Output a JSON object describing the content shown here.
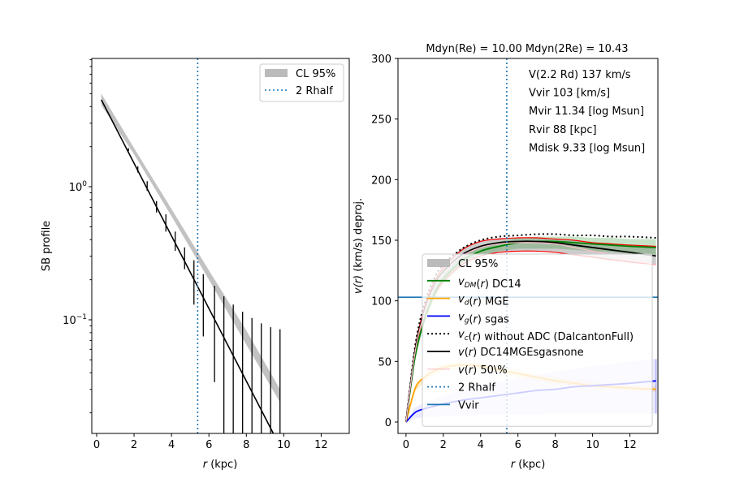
{
  "chart_data": [
    {
      "type": "line",
      "panel": "left",
      "title": "",
      "xlabel_italic": "r",
      "xlabel_rest": " (kpc)",
      "ylabel": "SB profile",
      "xscale": "linear",
      "yscale": "log",
      "xlim": [
        -0.26,
        13.5
      ],
      "ylim": [
        0.014,
        9.2
      ],
      "x_ticks": [
        0,
        2,
        4,
        6,
        8,
        10,
        12
      ],
      "x_tick_labels": [
        "0",
        "2",
        "4",
        "6",
        "8",
        "10",
        "12"
      ],
      "y_ticks": [
        1,
        0.1
      ],
      "y_tick_labels": [
        {
          "base": "10",
          "exp": "0"
        },
        {
          "base": "10",
          "exp": "−1"
        }
      ],
      "model_line": {
        "name": "SB model",
        "color": "#000000",
        "x": [
          0.25,
          9.5
        ],
        "y": [
          4.5,
          0.0135
        ]
      },
      "cl_band": {
        "name": "CL 95%",
        "color": "#bbbbbb",
        "x": [
          0.25,
          2,
          4,
          6,
          8,
          9.8
        ],
        "lower": [
          4.1,
          1.75,
          0.6,
          0.2,
          0.065,
          0.024
        ],
        "upper": [
          5.0,
          1.95,
          0.68,
          0.235,
          0.083,
          0.03
        ]
      },
      "error_bars": {
        "name": "SB data",
        "color": "#000000",
        "x": [
          1.7,
          2.2,
          2.7,
          3.2,
          3.7,
          4.2,
          4.7,
          5.2,
          5.7,
          6.3,
          6.8,
          7.3,
          7.8,
          8.3,
          8.8,
          9.3,
          9.8
        ],
        "low": [
          1.85,
          1.28,
          0.93,
          0.64,
          0.46,
          0.33,
          0.24,
          0.13,
          0.075,
          0.034,
          0.01,
          0.01,
          0.01,
          0.01,
          0.01,
          0.01,
          0.01
        ],
        "high": [
          1.95,
          1.42,
          1.1,
          0.78,
          0.62,
          0.46,
          0.35,
          0.28,
          0.22,
          0.18,
          0.15,
          0.13,
          0.115,
          0.103,
          0.094,
          0.088,
          0.085
        ]
      },
      "rhalf2_line": {
        "name": "2 Rhalf",
        "x": 5.4,
        "color": "#1f77b4"
      },
      "legend": {
        "position": "upper right",
        "entries": [
          {
            "label": "CL 95%",
            "style": "patch",
            "color": "#bbbbbb"
          },
          {
            "label": "2 Rhalf",
            "style": "dotted",
            "color": "#1f77b4"
          }
        ]
      }
    },
    {
      "type": "line",
      "panel": "right",
      "title": "Mdyn(Re) = 10.00  Mdyn(2Re) = 10.43",
      "xlabel_italic": "r",
      "xlabel_rest": " (kpc)",
      "ylabel": "v(r) (km/s) deproj.",
      "ylabel_italic": "v(r)",
      "ylabel_rest": " (km/s) deproj.",
      "xlim": [
        -0.43,
        13.5
      ],
      "ylim": [
        -9.4,
        300
      ],
      "x_ticks": [
        0,
        2,
        4,
        6,
        8,
        10,
        12
      ],
      "x_tick_labels": [
        "0",
        "2",
        "4",
        "6",
        "8",
        "10",
        "12"
      ],
      "y_ticks": [
        0,
        50,
        100,
        150,
        200,
        250,
        300
      ],
      "y_tick_labels": [
        "0",
        "50",
        "100",
        "150",
        "200",
        "250",
        "300"
      ],
      "annotations": [
        "V(2.2 Rd) 137 km/s",
        "Vvir 103 [km/s]",
        "Mvir 11.34 [log Msun]",
        "Rvir 88 [kpc]",
        "Mdisk 9.33 [log Msun]"
      ],
      "x": [
        0,
        0.5,
        1,
        1.5,
        2,
        3,
        4,
        5,
        6,
        7,
        8,
        9,
        10,
        11,
        12,
        13.4
      ],
      "series": [
        {
          "name": "v_DM(r) DC14",
          "color": "#008000",
          "style": "solid",
          "values": [
            0,
            55,
            85,
            105,
            118,
            133,
            141,
            145,
            148,
            149,
            149,
            148,
            147,
            146,
            145,
            144
          ]
        },
        {
          "name": "v_d(r) MGE",
          "color": "#ffa500",
          "style": "solid",
          "values": [
            0,
            28,
            37,
            42,
            45,
            47,
            46,
            43,
            40,
            37,
            34,
            32,
            30,
            29,
            28,
            27
          ]
        },
        {
          "name": "v_g(r) sgas",
          "color": "#0000ff",
          "style": "solid",
          "values": [
            0,
            8,
            11,
            13,
            15,
            18,
            20,
            22,
            24,
            26,
            27,
            29,
            30,
            31,
            32,
            34
          ]
        },
        {
          "name": "v_c(r) without ADC (DalcantonFull)",
          "color": "#000000",
          "style": "dotted",
          "values": [
            0,
            64,
            98,
            118,
            130,
            143,
            150,
            153,
            154,
            155,
            155,
            154,
            154,
            153,
            153,
            152
          ]
        },
        {
          "name": "v(r) DC14MGEsgasnone",
          "color": "#000000",
          "style": "solid",
          "values": [
            0,
            60,
            92,
            112,
            124,
            138,
            145,
            148,
            149,
            149,
            148,
            146,
            144,
            142,
            140,
            137
          ]
        },
        {
          "name": "v(r) 50\\%",
          "color": "#ffc0cb",
          "style": "solid",
          "values": [
            0,
            59,
            91,
            111,
            123,
            137,
            144,
            147,
            148,
            148,
            147,
            144,
            141,
            138,
            134,
            130
          ]
        }
      ],
      "bands": [
        {
          "name": "CL 95% (total)",
          "color": "#bbbbbb",
          "lower": [
            0,
            57,
            88,
            107,
            119,
            131,
            138,
            140,
            141,
            141,
            140,
            138,
            136,
            134,
            132,
            130
          ],
          "upper": [
            0,
            63,
            96,
            116,
            129,
            144,
            150,
            152,
            152,
            152,
            151,
            150,
            148,
            147,
            146,
            145
          ]
        },
        {
          "name": "DM band",
          "color": "#008000",
          "lower": [
            0,
            52,
            82,
            101,
            114,
            129,
            137,
            141,
            143,
            143,
            143,
            142,
            141,
            140,
            139,
            138
          ],
          "upper": [
            0,
            58,
            88,
            109,
            122,
            137,
            145,
            149,
            152,
            153,
            153,
            153,
            152,
            152,
            151,
            151
          ]
        },
        {
          "name": "MGE band",
          "color": "#ffa500",
          "lower": [
            0,
            25,
            34,
            39,
            42,
            44,
            43,
            40,
            37,
            34,
            31,
            30,
            28,
            27,
            26,
            25
          ],
          "upper": [
            0,
            31,
            40,
            45,
            48,
            50,
            49,
            46,
            43,
            40,
            37,
            35,
            33,
            31,
            30,
            29
          ]
        },
        {
          "name": "gas band",
          "color": "#0000ff",
          "lower": [
            0,
            3,
            4,
            4,
            5,
            5,
            6,
            6,
            6,
            6,
            7,
            7,
            7,
            7,
            7,
            7
          ],
          "upper": [
            0,
            12,
            16,
            19,
            22,
            26,
            30,
            33,
            36,
            39,
            42,
            44,
            46,
            48,
            50,
            52
          ]
        }
      ],
      "ci_red_lines": {
        "name": "CL bounds",
        "color": "#ff0000",
        "lower": [
          0,
          56,
          86,
          104,
          116,
          130,
          137,
          140,
          141,
          141,
          140,
          138,
          136,
          134,
          132,
          130
        ],
        "upper": [
          0,
          62,
          95,
          115,
          127,
          142,
          149,
          151,
          152,
          152,
          151,
          150,
          148,
          147,
          146,
          145
        ]
      },
      "hlines": [
        {
          "name": "Vvir",
          "y": 103,
          "color": "#1f77b4"
        }
      ],
      "rhalf2_line": {
        "name": "2 Rhalf",
        "x": 5.4,
        "color": "#1f77b4"
      },
      "legend": {
        "position": "lower center",
        "entries": [
          {
            "label_parts": [
              {
                "t": "CL 95%"
              }
            ],
            "style": "patch",
            "color": "#bbbbbb"
          },
          {
            "label_parts": [
              {
                "t": "v",
                "i": true
              },
              {
                "t": "DM",
                "sub": true,
                "i": true
              },
              {
                "t": "(",
                "i": false
              },
              {
                "t": "r",
                "i": true
              },
              {
                "t": ") DC14"
              }
            ],
            "style": "solid",
            "color": "#008000"
          },
          {
            "label_parts": [
              {
                "t": "v",
                "i": true
              },
              {
                "t": "d",
                "sub": true,
                "i": true
              },
              {
                "t": "("
              },
              {
                "t": "r",
                "i": true
              },
              {
                "t": ") MGE"
              }
            ],
            "style": "solid",
            "color": "#ffa500"
          },
          {
            "label_parts": [
              {
                "t": "v",
                "i": true
              },
              {
                "t": "g",
                "sub": true,
                "i": true
              },
              {
                "t": "("
              },
              {
                "t": "r",
                "i": true
              },
              {
                "t": ") sgas"
              }
            ],
            "style": "solid",
            "color": "#0000ff"
          },
          {
            "label_parts": [
              {
                "t": "v",
                "i": true
              },
              {
                "t": "c",
                "sub": true,
                "i": true
              },
              {
                "t": "("
              },
              {
                "t": "r",
                "i": true
              },
              {
                "t": ") without ADC (DalcantonFull)"
              }
            ],
            "style": "dotted",
            "color": "#000000"
          },
          {
            "label_parts": [
              {
                "t": "v",
                "i": true
              },
              {
                "t": "("
              },
              {
                "t": "r",
                "i": true
              },
              {
                "t": ") DC14MGEsgasnone"
              }
            ],
            "style": "solid",
            "color": "#000000"
          },
          {
            "label_parts": [
              {
                "t": "v",
                "i": true
              },
              {
                "t": "("
              },
              {
                "t": "r",
                "i": true
              },
              {
                "t": ") 50\\%"
              }
            ],
            "style": "solid",
            "color": "#ffc0cb"
          },
          {
            "label_parts": [
              {
                "t": "2 Rhalf"
              }
            ],
            "style": "dotted",
            "color": "#1f77b4"
          },
          {
            "label_parts": [
              {
                "t": "Vvir"
              }
            ],
            "style": "solid",
            "color": "#1f77b4"
          }
        ]
      }
    }
  ]
}
